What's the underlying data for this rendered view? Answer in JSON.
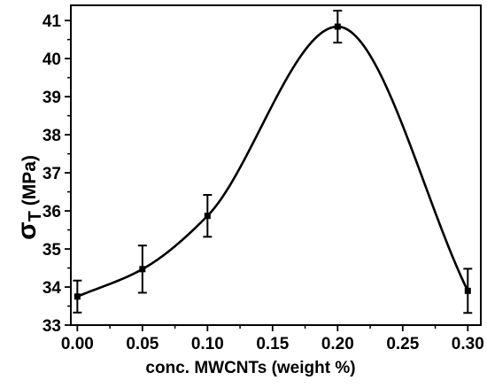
{
  "chart_data": {
    "type": "line",
    "xlabel": "conc. MWCNTs  (weight %)",
    "ylabel_symbol": "σ",
    "ylabel_subscript": "T",
    "ylabel_unit": " (MPa)",
    "xlim": [
      -0.005,
      0.31
    ],
    "ylim": [
      33,
      41.4
    ],
    "x_ticks": [
      0.0,
      0.05,
      0.1,
      0.15,
      0.2,
      0.25,
      0.3
    ],
    "x_tick_labels": [
      "0.00",
      "0.05",
      "0.10",
      "0.15",
      "0.20",
      "0.25",
      "0.30"
    ],
    "y_ticks": [
      33,
      34,
      35,
      36,
      37,
      38,
      39,
      40,
      41
    ],
    "y_tick_labels": [
      "33",
      "34",
      "35",
      "36",
      "37",
      "38",
      "39",
      "40",
      "41"
    ],
    "grid": false,
    "series": [
      {
        "x": [
          0.0,
          0.05,
          0.1,
          0.2,
          0.3
        ],
        "y": [
          33.75,
          34.47,
          35.87,
          40.84,
          33.9
        ],
        "y_err": [
          0.42,
          0.62,
          0.55,
          0.42,
          0.58
        ],
        "marker": "square",
        "color": "#000000",
        "smooth_curve": true
      }
    ]
  }
}
